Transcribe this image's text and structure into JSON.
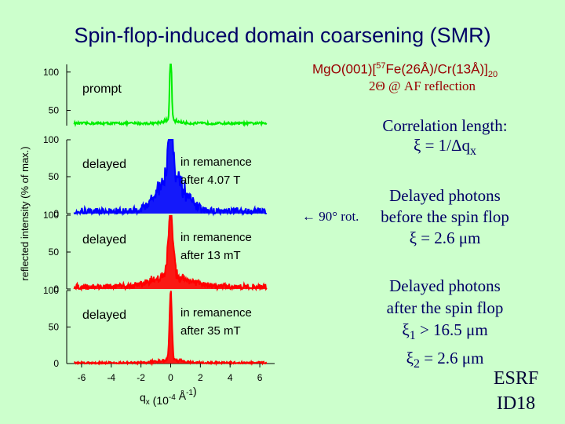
{
  "title": "Spin-flop-induced domain coarsening (SMR)",
  "sample": {
    "prefix": "MgO(001)[",
    "sup": "57",
    "mid": "Fe(26Å)/Cr(13Å)]",
    "sub": "20"
  },
  "reflection_note": "2Θ @ AF reflection",
  "rotation_note": "← 90° rot.",
  "correlation": {
    "line1": "Correlation length:",
    "line2": "ξ = 1/Δq",
    "line2_sub": "x"
  },
  "before": {
    "line1": "Delayed photons",
    "line2": "before the spin flop",
    "line3": "ξ = 2.6 μm"
  },
  "after": {
    "line1": "Delayed photons",
    "line2": "after the spin flop",
    "xi1_label": "ξ",
    "xi1_sub": "1",
    "xi1_value": " > 16.5 μm",
    "xi2_label": "ξ",
    "xi2_sub": "2",
    "xi2_value": " =   2.6 μm"
  },
  "facility": {
    "line1": "ESRF",
    "line2": "ID18"
  },
  "chart_data": {
    "type": "line",
    "ylabel": "reflected intensity (% of max.)",
    "xlabel": "q",
    "xlabel_sub": "x",
    "xlabel_units": "(10",
    "xlabel_exp1": "-4",
    "xlabel_mid": " Å",
    "xlabel_exp2": "-1",
    "xlabel_end": ")",
    "xlim": [
      -7,
      7
    ],
    "xticks": [
      -6,
      -4,
      -2,
      0,
      2,
      4,
      6
    ],
    "panels": [
      {
        "name": "prompt",
        "label": "prompt",
        "note1": "",
        "note2": "",
        "color": "#00ee00",
        "ylim": [
          30,
          110
        ],
        "yticks": [
          100,
          50
        ],
        "peak": 100,
        "width": 0.06,
        "base": 33,
        "noise": 1.5,
        "wing": 4,
        "wing_width": 0.5
      },
      {
        "name": "delayed-4.07",
        "label": "delayed",
        "note1": "in remanence",
        "note2": "after 4.07 T",
        "color": "#0000ff",
        "ylim": [
          0,
          100
        ],
        "yticks": [
          100,
          50,
          0
        ],
        "peak": 85,
        "width": 0.18,
        "base": 3,
        "noise": 5,
        "wing": 45,
        "wing_width": 0.9
      },
      {
        "name": "delayed-13",
        "label": "delayed",
        "note1": "in remanence",
        "note2": "after 13 mT",
        "color": "#ff0000",
        "ylim": [
          0,
          100
        ],
        "yticks": [
          100,
          50,
          0
        ],
        "peak": 85,
        "width": 0.16,
        "base": 3,
        "noise": 4,
        "wing": 15,
        "wing_width": 1.2
      },
      {
        "name": "delayed-35",
        "label": "delayed",
        "note1": "in remanence",
        "note2": "after 35 mT",
        "color": "#ff0000",
        "ylim": [
          0,
          100
        ],
        "yticks": [
          100,
          50,
          0
        ],
        "peak": 95,
        "width": 0.08,
        "base": 1,
        "noise": 1.5,
        "wing": 4,
        "wing_width": 0.8
      }
    ]
  }
}
